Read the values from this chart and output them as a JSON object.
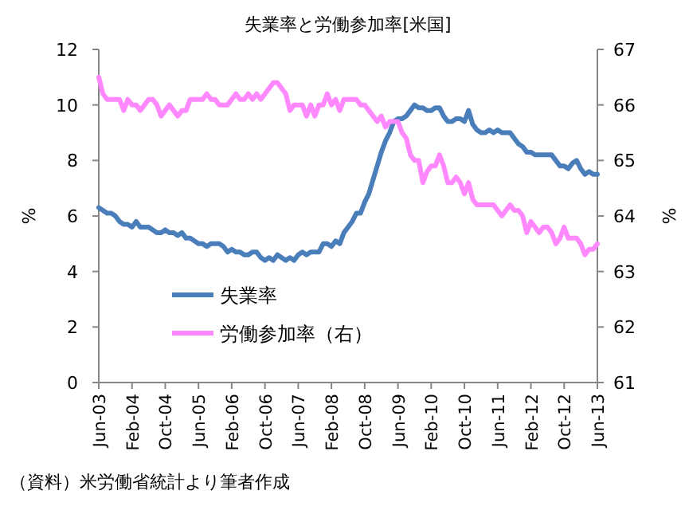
{
  "chart_data": {
    "type": "line",
    "title": "失業率と労働参加率[米国]",
    "ylabel": "%",
    "y2label": "%",
    "annotations": [
      "（資料）米労働省統計より筆者作成"
    ],
    "categories": [
      "Jun-03",
      null,
      null,
      null,
      null,
      null,
      null,
      null,
      "Feb-04",
      null,
      null,
      null,
      null,
      null,
      null,
      null,
      "Oct-04",
      null,
      null,
      null,
      null,
      null,
      null,
      null,
      "Jun-05",
      null,
      null,
      null,
      null,
      null,
      null,
      null,
      "Feb-06",
      null,
      null,
      null,
      null,
      null,
      null,
      null,
      "Oct-06",
      null,
      null,
      null,
      null,
      null,
      null,
      null,
      "Jun-07",
      null,
      null,
      null,
      null,
      null,
      null,
      null,
      "Feb-08",
      null,
      null,
      null,
      null,
      null,
      null,
      null,
      "Oct-08",
      null,
      null,
      null,
      null,
      null,
      null,
      null,
      "Jun-09",
      null,
      null,
      null,
      null,
      null,
      null,
      null,
      "Feb-10",
      null,
      null,
      null,
      null,
      null,
      null,
      null,
      "Oct-10",
      null,
      null,
      null,
      null,
      null,
      null,
      null,
      "Jun-11",
      null,
      null,
      null,
      null,
      null,
      null,
      null,
      "Feb-12",
      null,
      null,
      null,
      null,
      null,
      null,
      null,
      "Oct-12",
      null,
      null,
      null,
      null,
      null,
      null,
      null,
      "Jun-13"
    ],
    "ylim": [
      0,
      12
    ],
    "yticks": [
      0,
      2,
      4,
      6,
      8,
      10,
      12
    ],
    "y2lim": [
      61,
      67
    ],
    "y2ticks": [
      61,
      62,
      63,
      64,
      65,
      66,
      67
    ],
    "grid": false,
    "legend": "bottom left",
    "marker": "none",
    "line_style": "solid",
    "series": [
      {
        "name": "失業率",
        "color": "#4a7ebb",
        "values": [
          6.3,
          6.2,
          6.1,
          6.1,
          6.0,
          5.8,
          5.7,
          5.7,
          5.6,
          5.8,
          5.6,
          5.6,
          5.6,
          5.5,
          5.4,
          5.4,
          5.5,
          5.4,
          5.4,
          5.3,
          5.4,
          5.2,
          5.2,
          5.1,
          5.0,
          5.0,
          4.9,
          5.0,
          5.0,
          5.0,
          4.9,
          4.7,
          4.8,
          4.7,
          4.7,
          4.6,
          4.6,
          4.7,
          4.7,
          4.5,
          4.4,
          4.5,
          4.4,
          4.6,
          4.5,
          4.4,
          4.5,
          4.4,
          4.6,
          4.7,
          4.6,
          4.7,
          4.7,
          4.7,
          5.0,
          5.0,
          4.9,
          5.1,
          5.0,
          5.4,
          5.6,
          5.8,
          6.1,
          6.1,
          6.5,
          6.8,
          7.3,
          7.8,
          8.3,
          8.7,
          9.0,
          9.4,
          9.5,
          9.5,
          9.6,
          9.8,
          10.0,
          9.9,
          9.9,
          9.8,
          9.8,
          9.9,
          9.9,
          9.6,
          9.4,
          9.4,
          9.5,
          9.5,
          9.4,
          9.8,
          9.3,
          9.1,
          9.0,
          9.0,
          9.1,
          9.0,
          9.1,
          9.0,
          9.0,
          9.0,
          8.8,
          8.6,
          8.5,
          8.3,
          8.3,
          8.2,
          8.2,
          8.2,
          8.2,
          8.2,
          8.0,
          7.8,
          7.8,
          7.7,
          7.9,
          8.0,
          7.7,
          7.5,
          7.6,
          7.5,
          7.5
        ]
      },
      {
        "name": "労働参加率（右）",
        "color": "#ff88ff",
        "axis": "y2",
        "values": [
          66.5,
          66.2,
          66.1,
          66.1,
          66.1,
          66.1,
          65.9,
          66.1,
          66.0,
          66.0,
          65.9,
          66.0,
          66.1,
          66.1,
          66.0,
          65.8,
          65.9,
          66.0,
          65.9,
          65.8,
          65.9,
          65.9,
          66.1,
          66.1,
          66.1,
          66.1,
          66.2,
          66.1,
          66.1,
          66.0,
          66.0,
          66.0,
          66.1,
          66.2,
          66.1,
          66.1,
          66.2,
          66.1,
          66.2,
          66.1,
          66.2,
          66.3,
          66.4,
          66.4,
          66.3,
          66.2,
          65.9,
          66.0,
          66.0,
          66.0,
          65.8,
          66.0,
          65.8,
          66.0,
          66.0,
          66.2,
          66.0,
          66.1,
          65.9,
          66.1,
          66.1,
          66.1,
          66.1,
          66.0,
          66.0,
          65.9,
          65.8,
          65.7,
          65.8,
          65.6,
          65.7,
          65.7,
          65.7,
          65.5,
          65.4,
          65.1,
          65.0,
          65.0,
          64.6,
          64.8,
          64.9,
          64.9,
          65.1,
          64.9,
          64.6,
          64.6,
          64.7,
          64.6,
          64.4,
          64.6,
          64.3,
          64.2,
          64.2,
          64.2,
          64.2,
          64.2,
          64.1,
          64.0,
          64.1,
          64.2,
          64.1,
          64.1,
          64.0,
          63.7,
          63.9,
          63.8,
          63.7,
          63.8,
          63.8,
          63.7,
          63.5,
          63.6,
          63.8,
          63.6,
          63.6,
          63.6,
          63.5,
          63.3,
          63.4,
          63.4,
          63.5
        ]
      }
    ]
  }
}
